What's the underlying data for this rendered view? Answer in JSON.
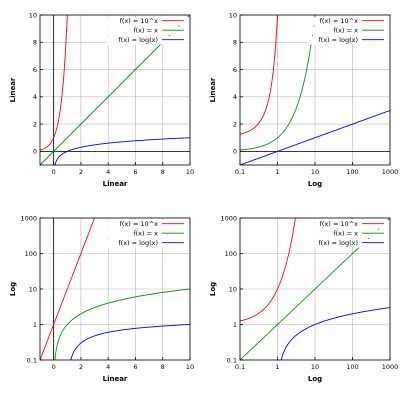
{
  "chart_data": [
    {
      "type": "line",
      "xlabel": "Linear",
      "ylabel": "Linear",
      "xscale": "linear",
      "yscale": "linear",
      "xlim": [
        -1,
        10
      ],
      "ylim": [
        -1,
        10
      ],
      "xticks": [
        "0",
        "2",
        "4",
        "6",
        "8",
        "10"
      ],
      "yticks": [
        "0",
        "2",
        "4",
        "6",
        "8",
        "10"
      ],
      "grid": true,
      "legend_position": "top-right",
      "series": [
        {
          "name": "f(x) = 10^x",
          "color": "#ff0000",
          "fn": "pow10"
        },
        {
          "name": "f(x) = x",
          "color": "#009000",
          "fn": "identity"
        },
        {
          "name": "f(x) = log(x)",
          "color": "#0000ff",
          "fn": "log10"
        }
      ]
    },
    {
      "type": "line",
      "xlabel": "Log",
      "ylabel": "Linear",
      "xscale": "log",
      "yscale": "linear",
      "xlim": [
        0.1,
        1000
      ],
      "ylim": [
        -1,
        10
      ],
      "xticks": [
        "0.1",
        "1",
        "10",
        "100",
        "1000"
      ],
      "yticks": [
        "0",
        "2",
        "4",
        "6",
        "8",
        "10"
      ],
      "grid": true,
      "legend_position": "top-right",
      "series": [
        {
          "name": "f(x) = 10^x",
          "color": "#ff0000",
          "fn": "pow10"
        },
        {
          "name": "f(x) = x",
          "color": "#009000",
          "fn": "identity"
        },
        {
          "name": "f(x) = log(x)",
          "color": "#0000ff",
          "fn": "log10"
        }
      ]
    },
    {
      "type": "line",
      "xlabel": "Linear",
      "ylabel": "Log",
      "xscale": "linear",
      "yscale": "log",
      "xlim": [
        -1,
        10
      ],
      "ylim": [
        0.1,
        1000
      ],
      "xticks": [
        "0",
        "2",
        "4",
        "6",
        "8",
        "10"
      ],
      "yticks": [
        "0.1",
        "1",
        "10",
        "100",
        "1000"
      ],
      "grid": true,
      "legend_position": "top-right",
      "series": [
        {
          "name": "f(x) = 10^x",
          "color": "#ff0000",
          "fn": "pow10"
        },
        {
          "name": "f(x) = x",
          "color": "#009000",
          "fn": "identity"
        },
        {
          "name": "f(x) = log(x)",
          "color": "#0000ff",
          "fn": "log10"
        }
      ]
    },
    {
      "type": "line",
      "xlabel": "Log",
      "ylabel": "Log",
      "xscale": "log",
      "yscale": "log",
      "xlim": [
        0.1,
        1000
      ],
      "ylim": [
        0.1,
        1000
      ],
      "xticks": [
        "0.1",
        "1",
        "10",
        "100",
        "1000"
      ],
      "yticks": [
        "0.1",
        "1",
        "10",
        "100",
        "1000"
      ],
      "grid": true,
      "legend_position": "top-right",
      "series": [
        {
          "name": "f(x) = 10^x",
          "color": "#ff0000",
          "fn": "pow10"
        },
        {
          "name": "f(x) = x",
          "color": "#009000",
          "fn": "identity"
        },
        {
          "name": "f(x) = log(x)",
          "color": "#0000ff",
          "fn": "log10"
        }
      ]
    }
  ]
}
